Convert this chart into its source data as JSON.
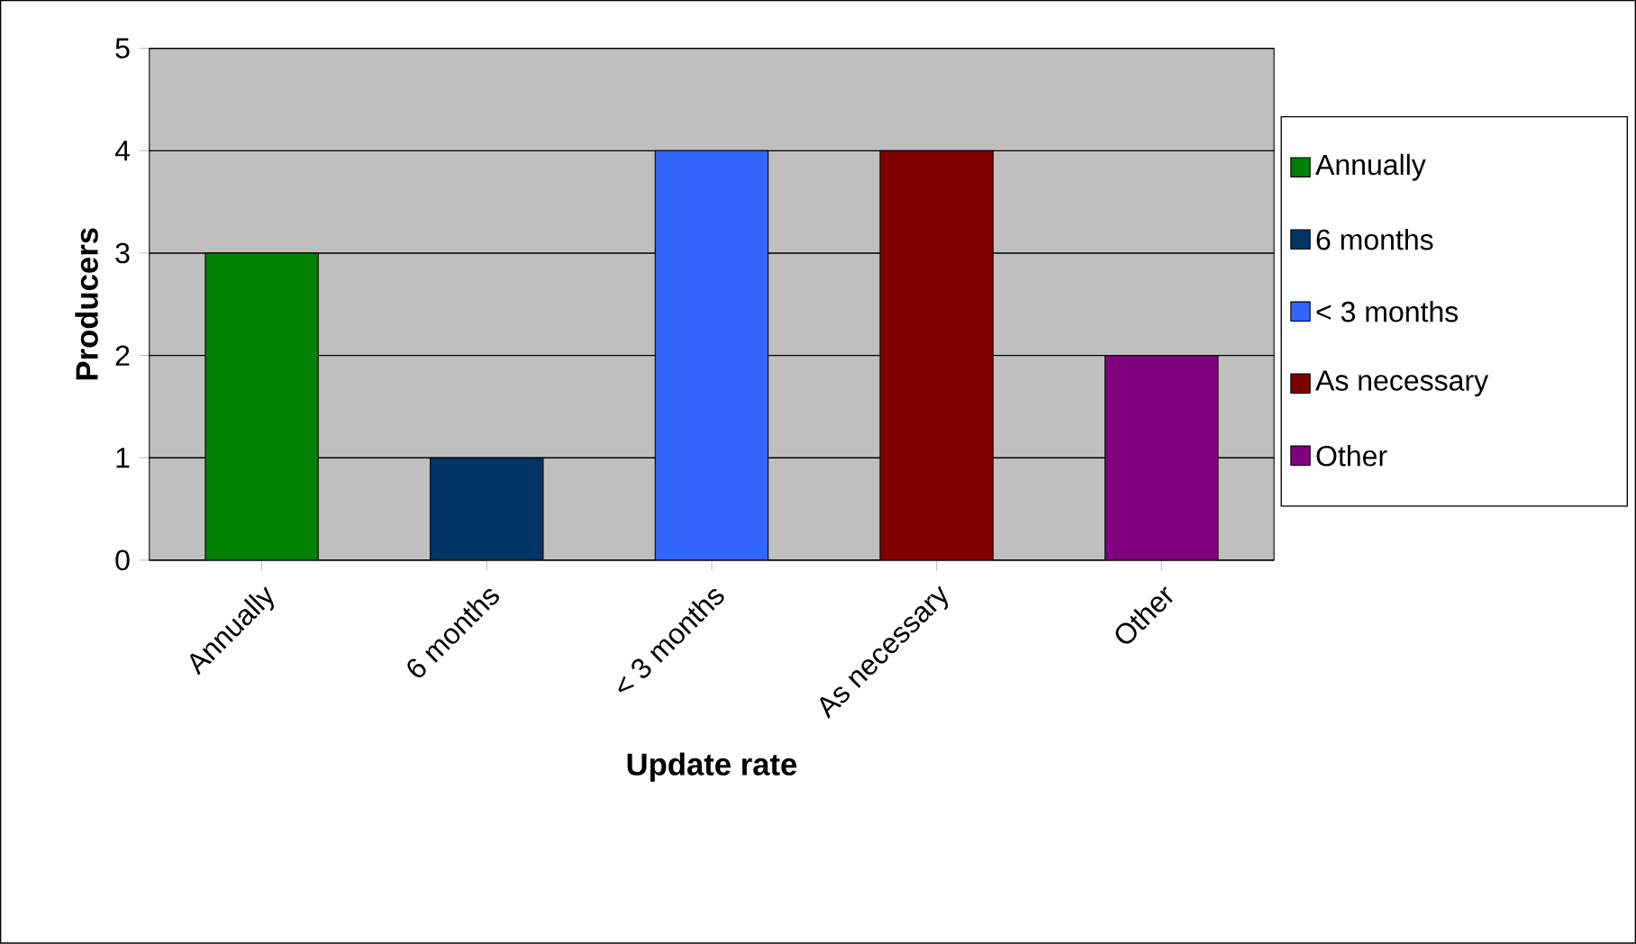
{
  "chart_data": {
    "type": "bar",
    "xlabel": "Update rate",
    "ylabel": "Producers",
    "categories": [
      "Annually",
      "6 months",
      "< 3 months",
      "As necessary",
      "Other"
    ],
    "series": [
      {
        "name": "Annually",
        "color": "#008000",
        "values": [
          3,
          null,
          null,
          null,
          null
        ]
      },
      {
        "name": "6 months",
        "color": "#003366",
        "values": [
          null,
          1,
          null,
          null,
          null
        ]
      },
      {
        "name": "< 3 months",
        "color": "#3366ff",
        "values": [
          null,
          null,
          4,
          null,
          null
        ]
      },
      {
        "name": "As necessary",
        "color": "#800000",
        "values": [
          null,
          null,
          null,
          4,
          null
        ]
      },
      {
        "name": "Other",
        "color": "#800080",
        "values": [
          null,
          null,
          null,
          null,
          2
        ]
      }
    ],
    "ylim": [
      0,
      5
    ],
    "yticks": [
      0,
      1,
      2,
      3,
      4,
      5
    ],
    "grid": "y",
    "legend": "right"
  }
}
